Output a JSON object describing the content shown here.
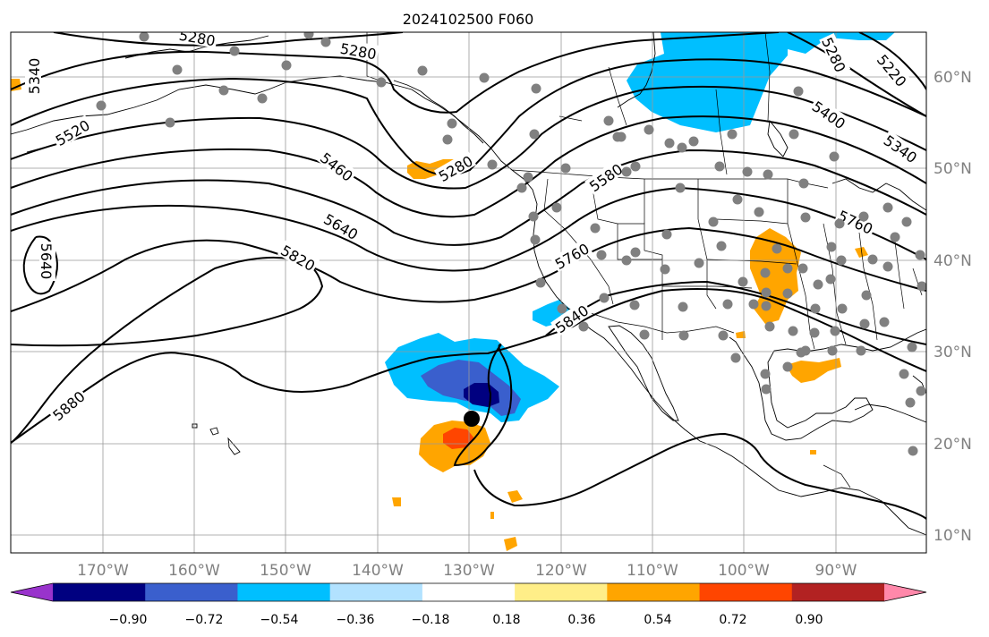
{
  "title": "2024102500 F060",
  "lat_labels": [
    "60°N",
    "50°N",
    "40°N",
    "30°N",
    "20°N",
    "10°N"
  ],
  "lon_labels": [
    "170°W",
    "160°W",
    "150°W",
    "140°W",
    "130°W",
    "120°W",
    "110°W",
    "100°W",
    "90°W"
  ],
  "contour_labels": [
    {
      "id": "c5340a",
      "text": "5340"
    },
    {
      "id": "c5280a",
      "text": "5280"
    },
    {
      "id": "c5280b",
      "text": "5280"
    },
    {
      "id": "c5280c",
      "text": "5280"
    },
    {
      "id": "c5520",
      "text": "5520"
    },
    {
      "id": "c5460",
      "text": "5460"
    },
    {
      "id": "c5280d",
      "text": "5280"
    },
    {
      "id": "c5640a",
      "text": "5640"
    },
    {
      "id": "c5640b",
      "text": "5640"
    },
    {
      "id": "c5820",
      "text": "5820"
    },
    {
      "id": "c5880",
      "text": "5880"
    },
    {
      "id": "c5580",
      "text": "5580"
    },
    {
      "id": "c5760a",
      "text": "5760"
    },
    {
      "id": "c5840",
      "text": "5840"
    },
    {
      "id": "c5220",
      "text": "5220"
    },
    {
      "id": "c5400",
      "text": "5400"
    },
    {
      "id": "c5340b",
      "text": "5340"
    },
    {
      "id": "c5760b",
      "text": "5760"
    }
  ],
  "colorbar": {
    "ticks": [
      "−0.90",
      "−0.72",
      "−0.54",
      "−0.36",
      "−0.18",
      "0.18",
      "0.36",
      "0.54",
      "0.72",
      "0.90"
    ],
    "colors": [
      "#9933cc",
      "#000080",
      "#3a5fcd",
      "#00bfff",
      "#b2e2ff",
      "#ffffff",
      "#ffee88",
      "#ffa500",
      "#ff4500",
      "#b22222",
      "#ff88aa"
    ]
  }
}
